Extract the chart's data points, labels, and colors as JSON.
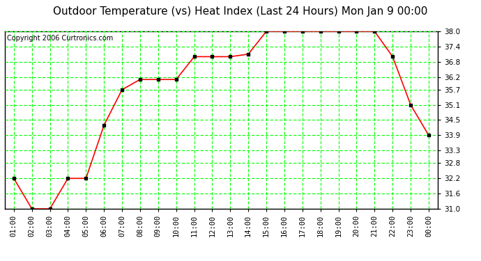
{
  "title": "Outdoor Temperature (vs) Heat Index (Last 24 Hours) Mon Jan 9 00:00",
  "copyright": "Copyright 2006 Curtronics.com",
  "x_labels": [
    "01:00",
    "02:00",
    "03:00",
    "04:00",
    "05:00",
    "06:00",
    "07:00",
    "08:00",
    "09:00",
    "10:00",
    "11:00",
    "12:00",
    "13:00",
    "14:00",
    "15:00",
    "16:00",
    "17:00",
    "18:00",
    "19:00",
    "20:00",
    "21:00",
    "22:00",
    "23:00",
    "00:00"
  ],
  "y_values": [
    32.2,
    31.0,
    31.0,
    32.2,
    32.2,
    34.3,
    35.7,
    36.1,
    36.1,
    36.1,
    37.0,
    37.0,
    37.0,
    37.1,
    38.0,
    38.0,
    38.0,
    38.0,
    38.0,
    38.0,
    38.0,
    37.0,
    35.1,
    33.9
  ],
  "y_min": 31.0,
  "y_max": 38.0,
  "y_ticks": [
    31.0,
    31.6,
    32.2,
    32.8,
    33.3,
    33.9,
    34.5,
    35.1,
    35.7,
    36.2,
    36.8,
    37.4,
    38.0
  ],
  "line_color": "#ff0000",
  "marker_color": "#000000",
  "grid_color": "#00ff00",
  "bg_color": "#ffffff",
  "plot_bg_color": "#ffffff",
  "title_fontsize": 11,
  "copyright_fontsize": 7,
  "tick_fontsize": 7.5
}
